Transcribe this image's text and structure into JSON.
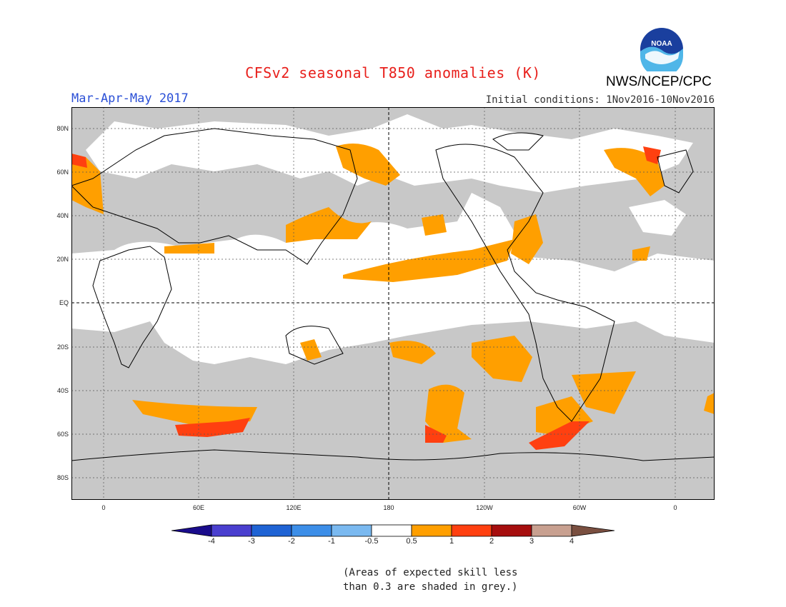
{
  "header": {
    "title": "CFSv2 seasonal T850 anomalies (K)",
    "season": "Mar-Apr-May 2017",
    "initial_conditions": "Initial conditions: 1Nov2016-10Nov2016",
    "agency": "NWS/NCEP/CPC",
    "logo_text": "NOAA"
  },
  "map": {
    "lat_labels": [
      "80N",
      "60N",
      "40N",
      "20N",
      "EQ",
      "20S",
      "40S",
      "60S",
      "80S"
    ],
    "lon_labels": [
      "0",
      "60E",
      "120E",
      "180",
      "120W",
      "60W",
      "0"
    ],
    "colors": {
      "grey": "#c8c8c8",
      "land_line": "#000000",
      "frame": "#000000"
    }
  },
  "colorbar": {
    "labels": [
      "-4",
      "-3",
      "-2",
      "-1",
      "-0.5",
      "0.5",
      "1",
      "2",
      "3",
      "4"
    ],
    "colors": [
      "#1a0c8c",
      "#4a3fcf",
      "#1f63d4",
      "#3c8ee8",
      "#7ab9f0",
      "#ffffff",
      "#ff9f00",
      "#ff4010",
      "#a60e0e",
      "#c8a090",
      "#7a4f40"
    ]
  },
  "note": {
    "line1": "(Areas of expected skill less",
    "line2": "than 0.3 are shaded in grey.)"
  }
}
